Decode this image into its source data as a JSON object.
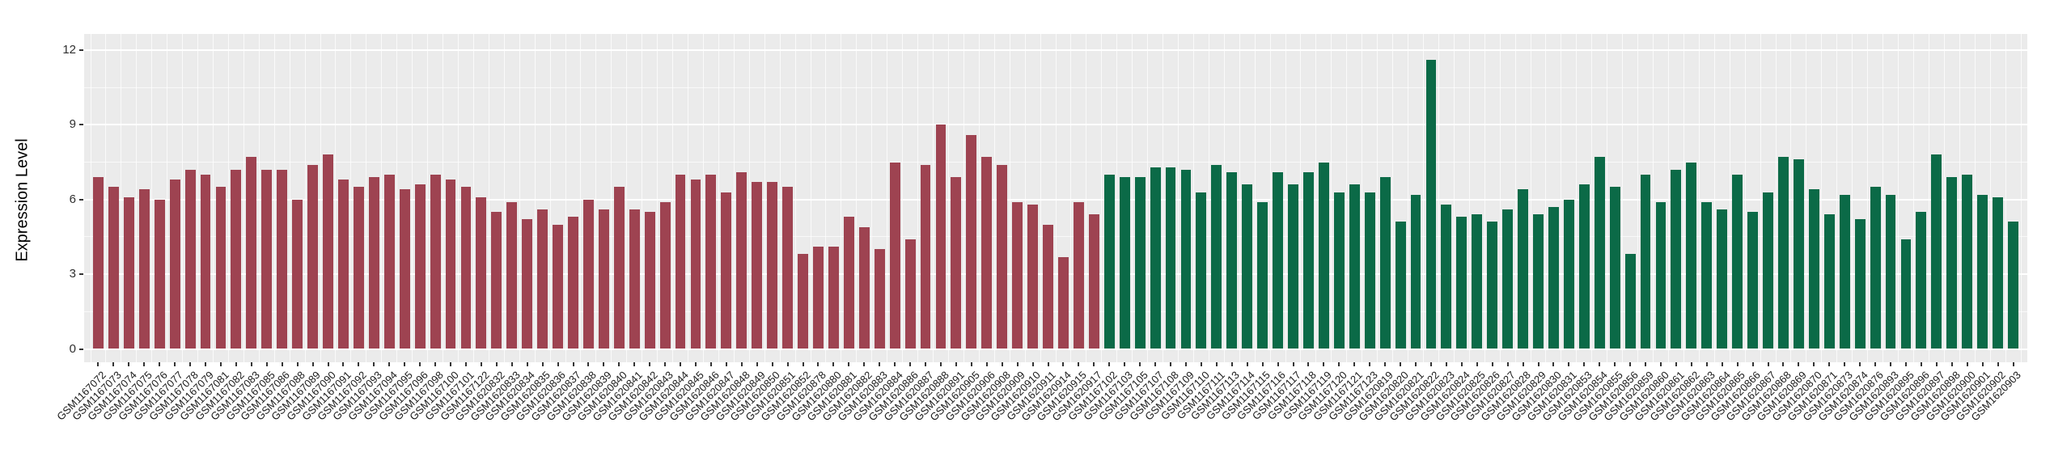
{
  "chart_data": {
    "type": "bar",
    "title": "",
    "xlabel": "",
    "ylabel": "Expression Level",
    "ylim": [
      0,
      12.65
    ],
    "yticks": [
      0,
      3,
      6,
      9,
      12
    ],
    "yminor": [
      1.5,
      4.5,
      7.5,
      10.5
    ],
    "grid": "on",
    "legend": "none",
    "panel_bg": "#ebebeb",
    "grid_color": "#ffffff",
    "series": [
      {
        "name": "group-red",
        "color": "#9e4351",
        "categories": [
          "GSM1167072",
          "GSM1167073",
          "GSM1167074",
          "GSM1167075",
          "GSM1167076",
          "GSM1167077",
          "GSM1167078",
          "GSM1167079",
          "GSM1167081",
          "GSM1167082",
          "GSM1167083",
          "GSM1167085",
          "GSM1167086",
          "GSM1167088",
          "GSM1167089",
          "GSM1167090",
          "GSM1167091",
          "GSM1167092",
          "GSM1167093",
          "GSM1167094",
          "GSM1167095",
          "GSM1167096",
          "GSM1167098",
          "GSM1167100",
          "GSM1167101",
          "GSM1167122",
          "GSM1620832",
          "GSM1620833",
          "GSM1620834",
          "GSM1620835",
          "GSM1620836",
          "GSM1620837",
          "GSM1620838",
          "GSM1620839",
          "GSM1620840",
          "GSM1620841",
          "GSM1620842",
          "GSM1620843",
          "GSM1620844",
          "GSM1620845",
          "GSM1620846",
          "GSM1620847",
          "GSM1620848",
          "GSM1620849",
          "GSM1620850",
          "GSM1620851",
          "GSM1620852",
          "GSM1620878",
          "GSM1620880",
          "GSM1620881",
          "GSM1620882",
          "GSM1620883",
          "GSM1620884",
          "GSM1620886",
          "GSM1620887",
          "GSM1620888",
          "GSM1620891",
          "GSM1620905",
          "GSM1620906",
          "GSM1620908",
          "GSM1620909",
          "GSM1620910",
          "GSM1620911",
          "GSM1620914",
          "GSM1620915",
          "GSM1620917"
        ],
        "values": [
          6.9,
          6.5,
          6.1,
          6.4,
          6.0,
          6.8,
          7.2,
          7.0,
          6.5,
          7.2,
          7.7,
          7.2,
          7.2,
          6.0,
          7.4,
          7.8,
          6.8,
          6.5,
          6.9,
          7.0,
          6.4,
          6.6,
          7.0,
          6.8,
          6.5,
          6.1,
          5.5,
          5.9,
          5.2,
          5.6,
          5.0,
          5.3,
          6.0,
          5.6,
          6.5,
          5.6,
          5.5,
          5.9,
          7.0,
          6.8,
          7.0,
          6.3,
          7.1,
          6.7,
          6.7,
          6.5,
          3.8,
          4.1,
          4.1,
          5.3,
          4.9,
          4.0,
          7.5,
          4.4,
          7.4,
          9.0,
          6.9,
          8.6,
          7.7,
          7.4,
          5.9,
          5.8,
          5.0,
          3.7,
          5.9,
          5.4
        ]
      },
      {
        "name": "group-green",
        "color": "#0b6a47",
        "categories": [
          "GSM1167102",
          "GSM1167103",
          "GSM1167105",
          "GSM1167107",
          "GSM1167108",
          "GSM1167109",
          "GSM1167110",
          "GSM1167111",
          "GSM1167113",
          "GSM1167114",
          "GSM1167115",
          "GSM1167116",
          "GSM1167117",
          "GSM1167118",
          "GSM1167119",
          "GSM1167120",
          "GSM1167121",
          "GSM1167123",
          "GSM1620819",
          "GSM1620820",
          "GSM1620821",
          "GSM1620822",
          "GSM1620823",
          "GSM1620824",
          "GSM1620825",
          "GSM1620826",
          "GSM1620827",
          "GSM1620828",
          "GSM1620829",
          "GSM1620830",
          "GSM1620831",
          "GSM1620853",
          "GSM1620854",
          "GSM1620855",
          "GSM1620856",
          "GSM1620859",
          "GSM1620860",
          "GSM1620861",
          "GSM1620862",
          "GSM1620863",
          "GSM1620864",
          "GSM1620865",
          "GSM1620866",
          "GSM1620867",
          "GSM1620868",
          "GSM1620869",
          "GSM1620870",
          "GSM1620871",
          "GSM1620873",
          "GSM1620874",
          "GSM1620876",
          "GSM1620893",
          "GSM1620895",
          "GSM1620896",
          "GSM1620897",
          "GSM1620898",
          "GSM1620900",
          "GSM1620901",
          "GSM1620902",
          "GSM1620903"
        ],
        "values": [
          7.0,
          6.9,
          6.9,
          7.3,
          7.3,
          7.2,
          6.3,
          7.4,
          7.1,
          6.6,
          5.9,
          7.1,
          6.6,
          7.1,
          7.5,
          6.3,
          6.6,
          6.3,
          6.9,
          5.1,
          6.2,
          11.6,
          5.8,
          5.3,
          5.4,
          5.1,
          5.6,
          6.4,
          5.4,
          5.7,
          6.0,
          6.6,
          7.7,
          6.5,
          3.8,
          7.0,
          5.9,
          7.2,
          7.5,
          5.9,
          5.6,
          7.0,
          5.5,
          6.3,
          7.7,
          7.6,
          6.4,
          5.4,
          6.2,
          5.2,
          6.5,
          6.2,
          4.4,
          5.5,
          7.8,
          6.9,
          7.0,
          6.2,
          6.1,
          5.1
        ]
      }
    ]
  }
}
